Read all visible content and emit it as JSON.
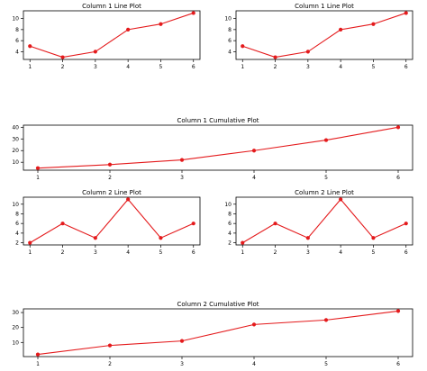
{
  "chart_data": [
    {
      "type": "line",
      "title": "Column 1 Line Plot",
      "x": [
        1,
        2,
        3,
        4,
        5,
        6
      ],
      "series": [
        {
          "values": [
            5,
            3,
            4,
            8,
            9,
            11
          ]
        }
      ],
      "xlabel": "",
      "ylabel": "",
      "xlim": [
        0.8,
        6.2
      ],
      "ylim": [
        2.6,
        11.4
      ],
      "xticks": [
        1,
        2,
        3,
        4,
        5,
        6
      ],
      "yticks": [
        4,
        6,
        8,
        10
      ],
      "grid": false,
      "color": "#e41a1c",
      "marker": "circle"
    },
    {
      "type": "line",
      "title": "Column 1 Line Plot",
      "x": [
        1,
        2,
        3,
        4,
        5,
        6
      ],
      "series": [
        {
          "values": [
            5,
            3,
            4,
            8,
            9,
            11
          ]
        }
      ],
      "xlabel": "",
      "ylabel": "",
      "xlim": [
        0.8,
        6.2
      ],
      "ylim": [
        2.6,
        11.4
      ],
      "xticks": [
        1,
        2,
        3,
        4,
        5,
        6
      ],
      "yticks": [
        4,
        6,
        8,
        10
      ],
      "grid": false,
      "color": "#e41a1c",
      "marker": "circle"
    },
    {
      "type": "line",
      "title": "Column 1 Cumulative Plot",
      "x": [
        1,
        2,
        3,
        4,
        5,
        6
      ],
      "series": [
        {
          "values": [
            5,
            8,
            12,
            20,
            29,
            40
          ]
        }
      ],
      "xlabel": "",
      "ylabel": "",
      "xlim": [
        0.8,
        6.2
      ],
      "ylim": [
        3.2,
        41.8
      ],
      "xticks": [
        1,
        2,
        3,
        4,
        5,
        6
      ],
      "yticks": [
        10,
        20,
        30,
        40
      ],
      "grid": false,
      "color": "#e41a1c",
      "marker": "circle"
    },
    {
      "type": "line",
      "title": "Column 2 Line Plot",
      "x": [
        1,
        2,
        3,
        4,
        5,
        6
      ],
      "series": [
        {
          "values": [
            2,
            6,
            3,
            11,
            3,
            6
          ]
        }
      ],
      "xlabel": "",
      "ylabel": "",
      "xlim": [
        0.8,
        6.2
      ],
      "ylim": [
        1.55,
        11.45
      ],
      "xticks": [
        1,
        2,
        3,
        4,
        5,
        6
      ],
      "yticks": [
        2,
        4,
        6,
        8,
        10
      ],
      "grid": false,
      "color": "#e41a1c",
      "marker": "circle"
    },
    {
      "type": "line",
      "title": "Column 2 Line Plot",
      "x": [
        1,
        2,
        3,
        4,
        5,
        6
      ],
      "series": [
        {
          "values": [
            2,
            6,
            3,
            11,
            3,
            6
          ]
        }
      ],
      "xlabel": "",
      "ylabel": "",
      "xlim": [
        0.8,
        6.2
      ],
      "ylim": [
        1.55,
        11.45
      ],
      "xticks": [
        1,
        2,
        3,
        4,
        5,
        6
      ],
      "yticks": [
        2,
        4,
        6,
        8,
        10
      ],
      "grid": false,
      "color": "#e41a1c",
      "marker": "circle"
    },
    {
      "type": "line",
      "title": "Column 2 Cumulative Plot",
      "x": [
        1,
        2,
        3,
        4,
        5,
        6
      ],
      "series": [
        {
          "values": [
            2,
            8,
            11,
            22,
            25,
            31
          ]
        }
      ],
      "xlabel": "",
      "ylabel": "",
      "xlim": [
        0.8,
        6.2
      ],
      "ylim": [
        0.55,
        32.45
      ],
      "xticks": [
        1,
        2,
        3,
        4,
        5,
        6
      ],
      "yticks": [
        10,
        20,
        30
      ],
      "grid": false,
      "color": "#e41a1c",
      "marker": "circle"
    }
  ]
}
